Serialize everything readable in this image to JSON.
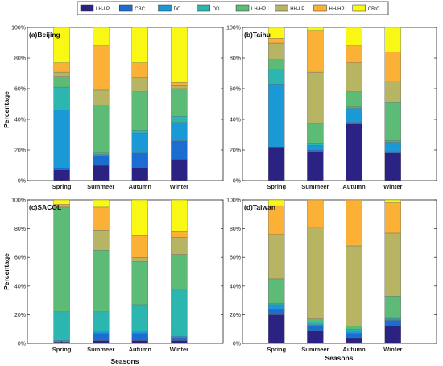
{
  "chart_data": {
    "type": "bar",
    "stacked": true,
    "ylim": [
      0,
      100
    ],
    "y_tick_labels": [
      "0%",
      "20%",
      "40%",
      "60%",
      "80%",
      "100%"
    ],
    "ylabel": "Percentage",
    "xlabel": "Seasons",
    "categories": [
      "Spring",
      "Summeer",
      "Autumn",
      "Winter"
    ],
    "legend": {
      "placement": "top",
      "entries": [
        "LH-LP",
        "CBC",
        "DC",
        "DD",
        "LH-HP",
        "HH-LP",
        "HH-HP",
        "CBrC"
      ]
    },
    "colors": [
      "#2b2383",
      "#1b6dd1",
      "#1b99d6",
      "#2bb7b0",
      "#5dbb78",
      "#b7b463",
      "#fbb135",
      "#f8f814"
    ],
    "panels": [
      {
        "title": "(a)Beijing",
        "series": [
          {
            "name": "LH-LP",
            "values": [
              7,
              10,
              8,
              14
            ]
          },
          {
            "name": "CBC",
            "values": [
              1,
              6,
              10,
              12
            ]
          },
          {
            "name": "DC",
            "values": [
              38,
              1,
              13,
              12
            ]
          },
          {
            "name": "DD",
            "values": [
              15,
              1,
              2,
              4
            ]
          },
          {
            "name": "LH-HP",
            "values": [
              7,
              31,
              25,
              18
            ]
          },
          {
            "name": "HH-LP",
            "values": [
              3,
              10,
              9,
              2
            ]
          },
          {
            "name": "HH-HP",
            "values": [
              6,
              29,
              10,
              2
            ]
          },
          {
            "name": "CBrC",
            "values": [
              23,
              12,
              23,
              36
            ]
          }
        ]
      },
      {
        "title": "(b)Taihu",
        "series": [
          {
            "name": "LH-LP",
            "values": [
              22,
              19,
              37,
              18
            ]
          },
          {
            "name": "CBC",
            "values": [
              0,
              1,
              1,
              1
            ]
          },
          {
            "name": "DC",
            "values": [
              41,
              3,
              9,
              6
            ]
          },
          {
            "name": "DD",
            "values": [
              10,
              1,
              1,
              1
            ]
          },
          {
            "name": "LH-HP",
            "values": [
              6,
              13,
              10,
              25
            ]
          },
          {
            "name": "HH-LP",
            "values": [
              11,
              34,
              19,
              14
            ]
          },
          {
            "name": "HH-HP",
            "values": [
              3,
              27,
              11,
              19
            ]
          },
          {
            "name": "CBrC",
            "values": [
              7,
              2,
              12,
              16
            ]
          }
        ]
      },
      {
        "title": "(c)SACOL",
        "series": [
          {
            "name": "LH-LP",
            "values": [
              1,
              2,
              2,
              2
            ]
          },
          {
            "name": "CBC",
            "values": [
              0,
              5,
              5,
              2
            ]
          },
          {
            "name": "DC",
            "values": [
              1,
              1,
              1,
              1
            ]
          },
          {
            "name": "DD",
            "values": [
              20,
              14,
              19,
              33
            ]
          },
          {
            "name": "LH-HP",
            "values": [
              73,
              43,
              30,
              24
            ]
          },
          {
            "name": "HH-LP",
            "values": [
              1,
              14,
              3,
              12
            ]
          },
          {
            "name": "HH-HP",
            "values": [
              1,
              16,
              15,
              4
            ]
          },
          {
            "name": "CBrC",
            "values": [
              3,
              5,
              25,
              22
            ]
          }
        ]
      },
      {
        "title": "(d)Taiwan",
        "series": [
          {
            "name": "LH-LP",
            "values": [
              20,
              9,
              4,
              12
            ]
          },
          {
            "name": "CBC",
            "values": [
              4,
              3,
              3,
              4
            ]
          },
          {
            "name": "DC",
            "values": [
              3,
              1,
              1,
              1
            ]
          },
          {
            "name": "DD",
            "values": [
              1,
              2,
              2,
              1
            ]
          },
          {
            "name": "LH-HP",
            "values": [
              17,
              2,
              2,
              15
            ]
          },
          {
            "name": "HH-LP",
            "values": [
              31,
              64,
              56,
              44
            ]
          },
          {
            "name": "HH-HP",
            "values": [
              20,
              19,
              32,
              21
            ]
          },
          {
            "name": "CBrC",
            "values": [
              4,
              0,
              0,
              2
            ]
          }
        ]
      }
    ]
  }
}
